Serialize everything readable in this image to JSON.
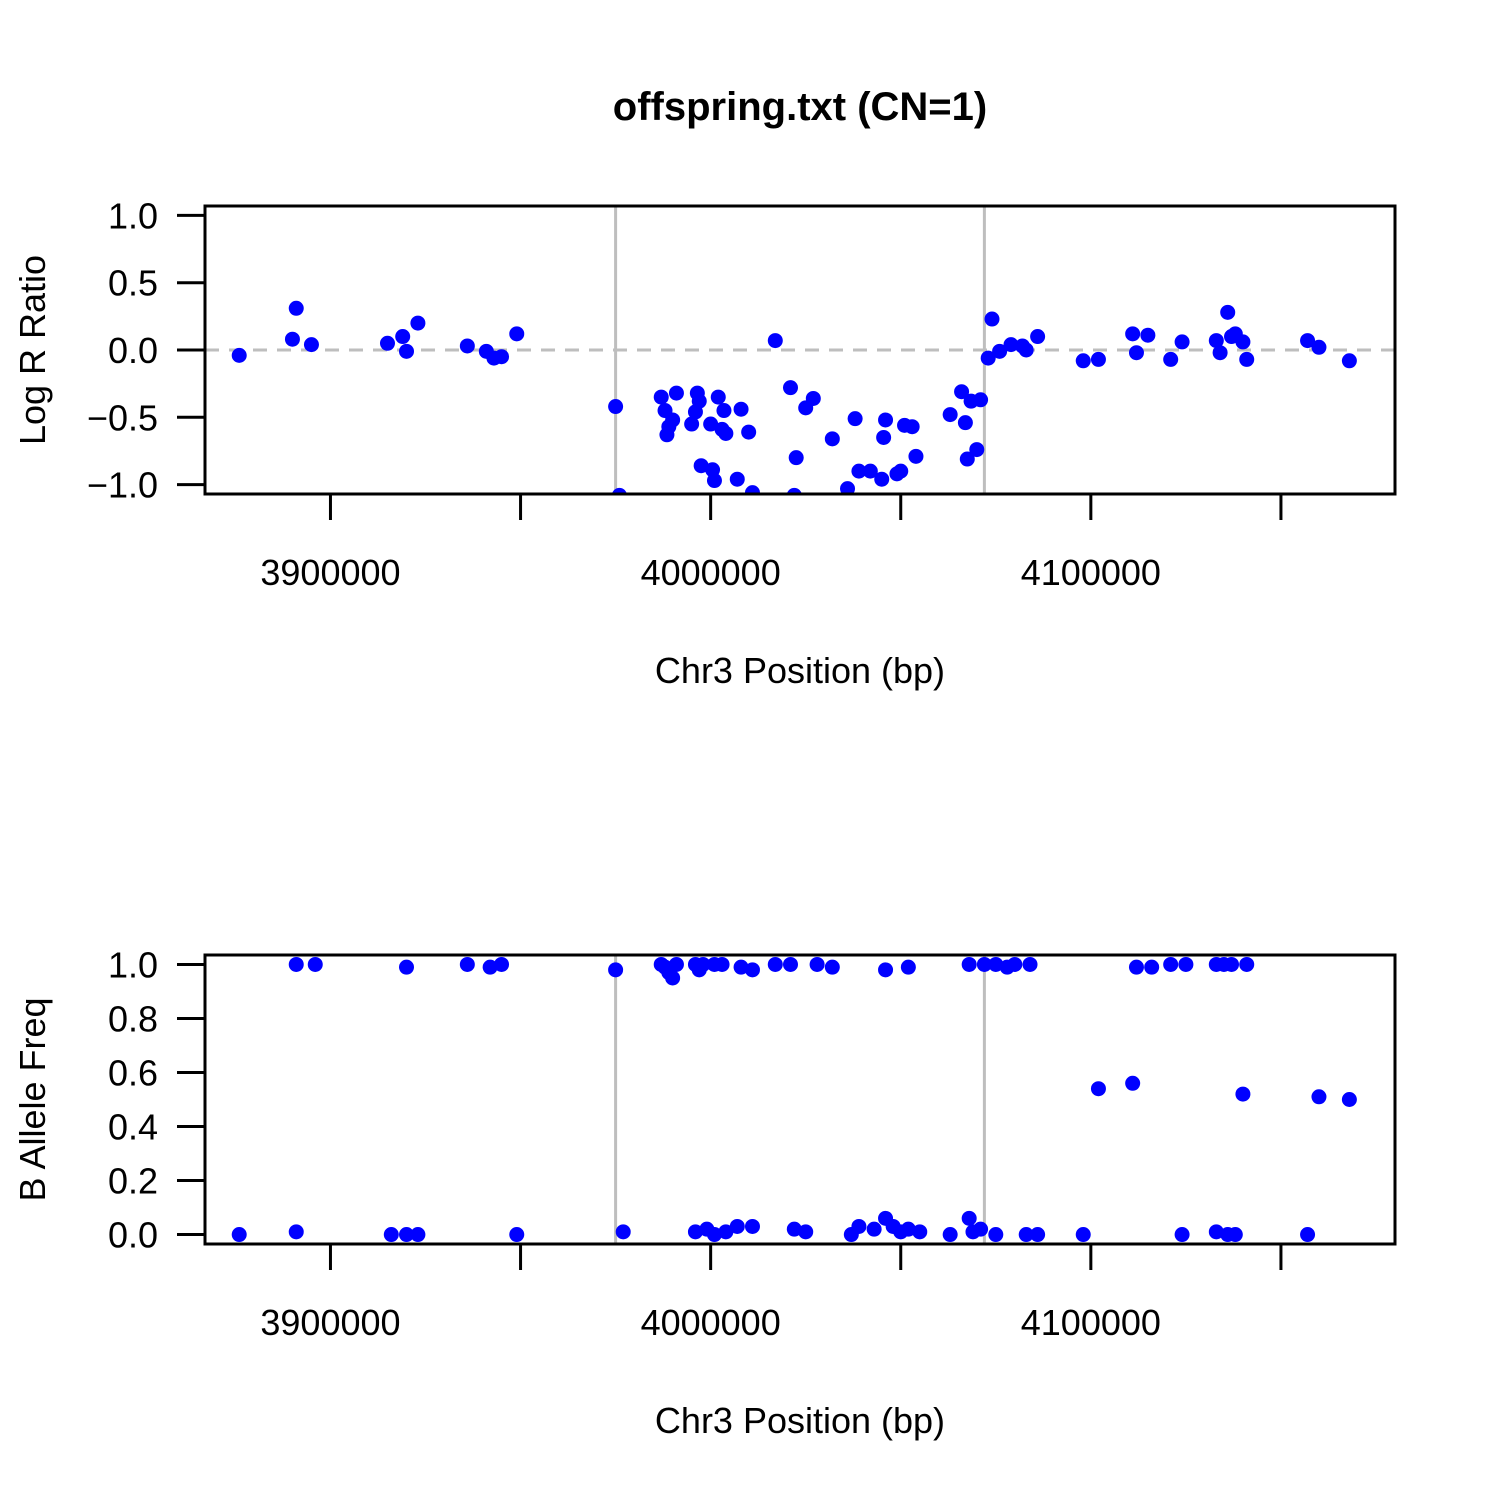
{
  "title": "offspring.txt (CN=1)",
  "colors": {
    "points": "#0000ff",
    "reference_lines": "#bebebe"
  },
  "chart_data": [
    {
      "type": "scatter",
      "ylabel": "Log R Ratio",
      "xlabel": "Chr3 Position (bp)",
      "xlim": [
        3867000,
        4180000
      ],
      "ylim": [
        -1.07,
        1.07
      ],
      "xticks": [
        3900000,
        3950000,
        4000000,
        4050000,
        4100000,
        4150000
      ],
      "xtick_labels": [
        "3900000",
        "",
        "4000000",
        "",
        "4100000",
        ""
      ],
      "yticks": [
        -1.0,
        -0.5,
        0.0,
        0.5,
        1.0
      ],
      "ytick_labels": [
        "−1.0",
        "−0.5",
        "0.0",
        "0.5",
        "1.0"
      ],
      "hline": 0.0,
      "vlines": [
        3975000,
        4072000
      ],
      "points": [
        [
          3876000,
          -0.04
        ],
        [
          3890000,
          0.08
        ],
        [
          3891000,
          0.31
        ],
        [
          3895000,
          0.04
        ],
        [
          3915000,
          0.05
        ],
        [
          3919000,
          0.1
        ],
        [
          3920000,
          -0.01
        ],
        [
          3923000,
          0.2
        ],
        [
          3936000,
          0.03
        ],
        [
          3941000,
          -0.01
        ],
        [
          3943000,
          -0.06
        ],
        [
          3945000,
          -0.05
        ],
        [
          3949000,
          0.12
        ],
        [
          3975000,
          -0.42
        ],
        [
          3976000,
          -1.08
        ],
        [
          3987000,
          -0.35
        ],
        [
          3988000,
          -0.45
        ],
        [
          3988500,
          -0.63
        ],
        [
          3989000,
          -0.57
        ],
        [
          3990000,
          -0.52
        ],
        [
          3991000,
          -0.32
        ],
        [
          3995000,
          -0.55
        ],
        [
          3996000,
          -0.46
        ],
        [
          3996500,
          -0.32
        ],
        [
          3997000,
          -0.38
        ],
        [
          3997500,
          -0.86
        ],
        [
          4000000,
          -0.55
        ],
        [
          4000500,
          -0.89
        ],
        [
          4001000,
          -0.97
        ],
        [
          4002000,
          -0.35
        ],
        [
          4003000,
          -0.59
        ],
        [
          4003500,
          -0.45
        ],
        [
          4004000,
          -0.62
        ],
        [
          4007000,
          -0.96
        ],
        [
          4008000,
          -0.44
        ],
        [
          4010000,
          -0.61
        ],
        [
          4011000,
          -1.06
        ],
        [
          4017000,
          0.07
        ],
        [
          4021000,
          -0.28
        ],
        [
          4022000,
          -1.08
        ],
        [
          4022500,
          -0.8
        ],
        [
          4025000,
          -0.43
        ],
        [
          4027000,
          -0.36
        ],
        [
          4032000,
          -0.66
        ],
        [
          4036000,
          -1.03
        ],
        [
          4038000,
          -0.51
        ],
        [
          4039000,
          -0.9
        ],
        [
          4042000,
          -0.9
        ],
        [
          4045000,
          -0.96
        ],
        [
          4045500,
          -0.65
        ],
        [
          4046000,
          -0.52
        ],
        [
          4049000,
          -0.92
        ],
        [
          4050000,
          -0.9
        ],
        [
          4051000,
          -0.56
        ],
        [
          4053000,
          -0.57
        ],
        [
          4054000,
          -0.79
        ],
        [
          4063000,
          -0.48
        ],
        [
          4066000,
          -0.31
        ],
        [
          4067000,
          -0.54
        ],
        [
          4067500,
          -0.81
        ],
        [
          4068500,
          -0.38
        ],
        [
          4070000,
          -0.74
        ],
        [
          4071000,
          -0.37
        ],
        [
          4073000,
          -0.06
        ],
        [
          4074000,
          0.23
        ],
        [
          4076000,
          -0.01
        ],
        [
          4079000,
          0.04
        ],
        [
          4082000,
          0.03
        ],
        [
          4083000,
          0.0
        ],
        [
          4086000,
          0.1
        ],
        [
          4098000,
          -0.08
        ],
        [
          4102000,
          -0.07
        ],
        [
          4111000,
          0.12
        ],
        [
          4112000,
          -0.02
        ],
        [
          4115000,
          0.11
        ],
        [
          4121000,
          -0.07
        ],
        [
          4124000,
          0.06
        ],
        [
          4133000,
          0.07
        ],
        [
          4134000,
          -0.02
        ],
        [
          4136000,
          0.28
        ],
        [
          4137000,
          0.1
        ],
        [
          4138000,
          0.12
        ],
        [
          4140000,
          0.06
        ],
        [
          4141000,
          -0.07
        ],
        [
          4157000,
          0.07
        ],
        [
          4160000,
          0.02
        ],
        [
          4168000,
          -0.08
        ]
      ]
    },
    {
      "type": "scatter",
      "ylabel": "B Allele Freq",
      "xlabel": "Chr3 Position (bp)",
      "xlim": [
        3867000,
        4180000
      ],
      "ylim": [
        -0.035,
        1.035
      ],
      "xticks": [
        3900000,
        3950000,
        4000000,
        4050000,
        4100000,
        4150000
      ],
      "xtick_labels": [
        "3900000",
        "",
        "4000000",
        "",
        "4100000",
        ""
      ],
      "yticks": [
        0.0,
        0.2,
        0.4,
        0.6,
        0.8,
        1.0
      ],
      "ytick_labels": [
        "0.0",
        "0.2",
        "0.4",
        "0.6",
        "0.8",
        "1.0"
      ],
      "vlines": [
        3975000,
        4072000
      ],
      "points": [
        [
          3891000,
          1.0
        ],
        [
          3896000,
          1.0
        ],
        [
          3920000,
          0.99
        ],
        [
          3936000,
          1.0
        ],
        [
          3942000,
          0.99
        ],
        [
          3945000,
          1.0
        ],
        [
          3975000,
          0.98
        ],
        [
          3987000,
          1.0
        ],
        [
          3988000,
          0.99
        ],
        [
          3989000,
          0.97
        ],
        [
          3990000,
          0.95
        ],
        [
          3991000,
          1.0
        ],
        [
          3996000,
          1.0
        ],
        [
          3997000,
          0.98
        ],
        [
          3998000,
          1.0
        ],
        [
          4001000,
          1.0
        ],
        [
          4003000,
          1.0
        ],
        [
          4008000,
          0.99
        ],
        [
          4011000,
          0.98
        ],
        [
          4017000,
          1.0
        ],
        [
          4021000,
          1.0
        ],
        [
          4028000,
          1.0
        ],
        [
          4032000,
          0.99
        ],
        [
          4046000,
          0.98
        ],
        [
          4052000,
          0.99
        ],
        [
          4068000,
          1.0
        ],
        [
          4072000,
          1.0
        ],
        [
          4075000,
          1.0
        ],
        [
          4078000,
          0.99
        ],
        [
          4080000,
          1.0
        ],
        [
          4084000,
          1.0
        ],
        [
          4112000,
          0.99
        ],
        [
          4116000,
          0.99
        ],
        [
          4121000,
          1.0
        ],
        [
          4125000,
          1.0
        ],
        [
          4133000,
          1.0
        ],
        [
          4135000,
          1.0
        ],
        [
          4137000,
          1.0
        ],
        [
          4141000,
          1.0
        ],
        [
          4102000,
          0.54
        ],
        [
          4111000,
          0.56
        ],
        [
          4140000,
          0.52
        ],
        [
          4160000,
          0.51
        ],
        [
          4168000,
          0.5
        ],
        [
          3876000,
          0.0
        ],
        [
          3891000,
          0.01
        ],
        [
          3916000,
          0.0
        ],
        [
          3920000,
          0.0
        ],
        [
          3923000,
          0.0
        ],
        [
          3949000,
          0.0
        ],
        [
          3977000,
          0.01
        ],
        [
          3996000,
          0.01
        ],
        [
          3999000,
          0.02
        ],
        [
          4001000,
          0.0
        ],
        [
          4004000,
          0.01
        ],
        [
          4007000,
          0.03
        ],
        [
          4011000,
          0.03
        ],
        [
          4022000,
          0.02
        ],
        [
          4025000,
          0.01
        ],
        [
          4037000,
          0.0
        ],
        [
          4039000,
          0.03
        ],
        [
          4043000,
          0.02
        ],
        [
          4046000,
          0.06
        ],
        [
          4048000,
          0.03
        ],
        [
          4050000,
          0.01
        ],
        [
          4052000,
          0.02
        ],
        [
          4055000,
          0.01
        ],
        [
          4063000,
          0.0
        ],
        [
          4068000,
          0.06
        ],
        [
          4069000,
          0.01
        ],
        [
          4071000,
          0.02
        ],
        [
          4075000,
          0.0
        ],
        [
          4083000,
          0.0
        ],
        [
          4086000,
          0.0
        ],
        [
          4098000,
          0.0
        ],
        [
          4124000,
          0.0
        ],
        [
          4133000,
          0.01
        ],
        [
          4136000,
          0.0
        ],
        [
          4138000,
          0.0
        ],
        [
          4157000,
          0.0
        ]
      ]
    }
  ]
}
